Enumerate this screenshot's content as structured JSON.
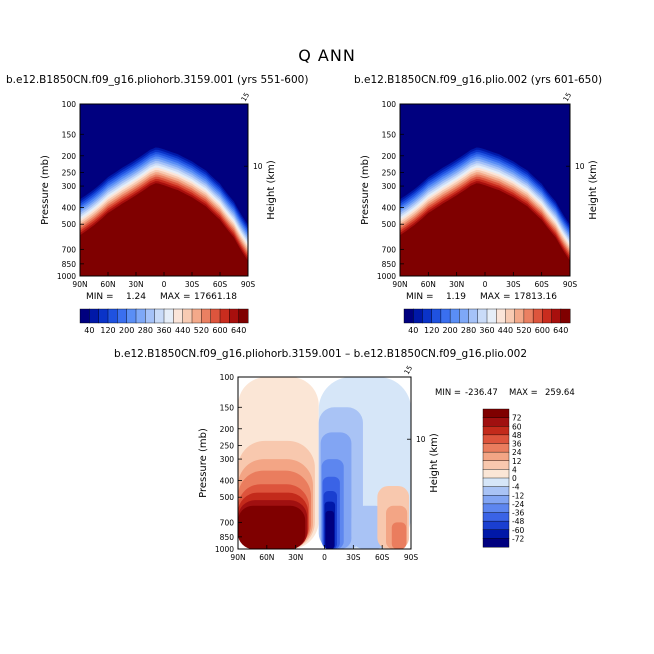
{
  "title": "Q ANN",
  "colors": {
    "moist_field": [
      "#00007f",
      "#0018a8",
      "#0a33c8",
      "#1f52e0",
      "#3a6fef",
      "#5a8ef5",
      "#7ea8f7",
      "#a5c2f8",
      "#c9dbf8",
      "#e6eef8",
      "#fbe5d9",
      "#f8cbb3",
      "#f3a98a",
      "#ea8062",
      "#dd553d",
      "#c92c1e",
      "#a80f0d",
      "#7f0000"
    ],
    "diff_field": [
      "#00007f",
      "#0018a8",
      "#1a3fd0",
      "#3a63e6",
      "#5d86ef",
      "#82a5f3",
      "#a9c3f5",
      "#d6e6f8",
      "#fbe6d6",
      "#f8c8ae",
      "#f3a585",
      "#ea7d5e",
      "#dd543c",
      "#c32a1b",
      "#a01010",
      "#7f0000"
    ]
  },
  "chart_data": [
    {
      "type": "heatmap",
      "title": "b.e12.B1850CN.f09_g16.pliohorb.3159.001 (yrs 551-600)",
      "ylabel": "Pressure (mb)",
      "ylabel_right": "Height (km)",
      "y_ticks": [
        "100",
        "150",
        "200",
        "250",
        "300",
        "400",
        "500",
        "700",
        "850",
        "1000"
      ],
      "y_tick_values": [
        100,
        150,
        200,
        250,
        300,
        400,
        500,
        700,
        850,
        1000
      ],
      "right_ticks": [
        "10"
      ],
      "right_top_tick": "15",
      "x_ticks": [
        "90N",
        "60N",
        "30N",
        "0",
        "30S",
        "60S",
        "90S"
      ],
      "x_tick_values": [
        90,
        60,
        30,
        0,
        -30,
        -60,
        -90
      ],
      "xlim": [
        90,
        -90
      ],
      "ylim": [
        100,
        1000
      ],
      "min_label": "MIN =",
      "min_value": "1.24",
      "max_label": "MAX =",
      "max_value": "17661.18",
      "colorbar_labels": [
        "40",
        "120",
        "200",
        "280",
        "360",
        "440",
        "520",
        "600",
        "640"
      ],
      "levels": [
        40,
        80,
        120,
        160,
        200,
        240,
        280,
        320,
        360,
        400,
        440,
        480,
        520,
        560,
        600,
        640,
        720
      ],
      "sat_pressure": [
        {
          "lat": 90,
          "p": 640
        },
        {
          "lat": 75,
          "p": 560
        },
        {
          "lat": 60,
          "p": 475
        },
        {
          "lat": 45,
          "p": 420
        },
        {
          "lat": 30,
          "p": 375
        },
        {
          "lat": 15,
          "p": 330
        },
        {
          "lat": 8,
          "p": 318
        },
        {
          "lat": 0,
          "p": 328
        },
        {
          "lat": -15,
          "p": 350
        },
        {
          "lat": -30,
          "p": 385
        },
        {
          "lat": -45,
          "p": 435
        },
        {
          "lat": -60,
          "p": 520
        },
        {
          "lat": -75,
          "p": 660
        },
        {
          "lat": -90,
          "p": 900
        }
      ]
    },
    {
      "type": "heatmap",
      "title": "b.e12.B1850CN.f09_g16.plio.002 (yrs 601-650)",
      "ylabel": "Pressure (mb)",
      "ylabel_right": "Height (km)",
      "y_ticks": [
        "100",
        "150",
        "200",
        "250",
        "300",
        "400",
        "500",
        "700",
        "850",
        "1000"
      ],
      "y_tick_values": [
        100,
        150,
        200,
        250,
        300,
        400,
        500,
        700,
        850,
        1000
      ],
      "right_ticks": [
        "10"
      ],
      "right_top_tick": "15",
      "x_ticks": [
        "90N",
        "60N",
        "30N",
        "0",
        "30S",
        "60S",
        "90S"
      ],
      "x_tick_values": [
        90,
        60,
        30,
        0,
        -30,
        -60,
        -90
      ],
      "xlim": [
        90,
        -90
      ],
      "ylim": [
        100,
        1000
      ],
      "min_label": "MIN =",
      "min_value": "1.19",
      "max_label": "MAX =",
      "max_value": "17813.16",
      "colorbar_labels": [
        "40",
        "120",
        "200",
        "280",
        "360",
        "440",
        "520",
        "600",
        "640"
      ],
      "levels": [
        40,
        80,
        120,
        160,
        200,
        240,
        280,
        320,
        360,
        400,
        440,
        480,
        520,
        560,
        600,
        640,
        720
      ],
      "sat_pressure": [
        {
          "lat": 90,
          "p": 640
        },
        {
          "lat": 75,
          "p": 560
        },
        {
          "lat": 60,
          "p": 475
        },
        {
          "lat": 45,
          "p": 420
        },
        {
          "lat": 30,
          "p": 375
        },
        {
          "lat": 15,
          "p": 330
        },
        {
          "lat": 8,
          "p": 318
        },
        {
          "lat": 0,
          "p": 328
        },
        {
          "lat": -15,
          "p": 350
        },
        {
          "lat": -30,
          "p": 385
        },
        {
          "lat": -45,
          "p": 435
        },
        {
          "lat": -60,
          "p": 520
        },
        {
          "lat": -75,
          "p": 660
        },
        {
          "lat": -90,
          "p": 900
        }
      ]
    },
    {
      "type": "heatmap",
      "title": "b.e12.B1850CN.f09_g16.pliohorb.3159.001 – b.e12.B1850CN.f09_g16.plio.002",
      "ylabel": "Pressure (mb)",
      "ylabel_right": "Height (km)",
      "y_ticks": [
        "100",
        "150",
        "200",
        "250",
        "300",
        "400",
        "500",
        "700",
        "850",
        "1000"
      ],
      "y_tick_values": [
        100,
        150,
        200,
        250,
        300,
        400,
        500,
        700,
        850,
        1000
      ],
      "right_ticks": [
        "10"
      ],
      "right_top_tick": "15",
      "x_ticks": [
        "90N",
        "60N",
        "30N",
        "0",
        "30S",
        "60S",
        "90S"
      ],
      "x_tick_values": [
        90,
        60,
        30,
        0,
        -30,
        -60,
        -90
      ],
      "xlim": [
        90,
        -90
      ],
      "ylim": [
        100,
        1000
      ],
      "min_label": "MIN =",
      "min_value": "-236.47",
      "max_label": "MAX =",
      "max_value": "259.64",
      "colorbar_labels": [
        "72",
        "60",
        "48",
        "36",
        "24",
        "12",
        "4",
        "0",
        "-4",
        "-12",
        "-24",
        "-36",
        "-48",
        "-60",
        "-72"
      ],
      "levels": [
        -84,
        -72,
        -60,
        -48,
        -36,
        -24,
        -12,
        -4,
        0,
        4,
        12,
        24,
        36,
        48,
        60,
        72,
        84
      ],
      "regions": [
        {
          "name": "background-nh",
          "lat0": 90,
          "lat1": 6,
          "p0": 100,
          "p1": 1000,
          "value": 2
        },
        {
          "name": "background-sh",
          "lat0": 6,
          "lat1": -90,
          "p0": 100,
          "p1": 1000,
          "value": -2
        },
        {
          "name": "nh-warm-1",
          "lat0": 90,
          "lat1": 10,
          "p0": 235,
          "p1": 1000,
          "value": 8
        },
        {
          "name": "nh-warm-2",
          "lat0": 90,
          "lat1": 12,
          "p0": 300,
          "p1": 1000,
          "value": 18
        },
        {
          "name": "nh-warm-3",
          "lat0": 90,
          "lat1": 14,
          "p0": 350,
          "p1": 1000,
          "value": 30
        },
        {
          "name": "nh-warm-4",
          "lat0": 90,
          "lat1": 16,
          "p0": 420,
          "p1": 1000,
          "value": 42
        },
        {
          "name": "nh-warm-5",
          "lat0": 90,
          "lat1": 17,
          "p0": 470,
          "p1": 1000,
          "value": 54
        },
        {
          "name": "nh-warm-6",
          "lat0": 90,
          "lat1": 18,
          "p0": 520,
          "p1": 1000,
          "value": 66
        },
        {
          "name": "nh-warm-7",
          "lat0": 90,
          "lat1": 20,
          "p0": 560,
          "p1": 1000,
          "value": 80
        },
        {
          "name": "eq-cool-1",
          "lat0": 6,
          "lat1": -40,
          "p0": 150,
          "p1": 1000,
          "value": -8
        },
        {
          "name": "eq-cool-2",
          "lat0": 4,
          "lat1": -28,
          "p0": 210,
          "p1": 1000,
          "value": -18
        },
        {
          "name": "eq-cool-3",
          "lat0": 3,
          "lat1": -20,
          "p0": 300,
          "p1": 1000,
          "value": -30
        },
        {
          "name": "eq-cool-4",
          "lat0": 2,
          "lat1": -16,
          "p0": 380,
          "p1": 1000,
          "value": -42
        },
        {
          "name": "eq-cool-5",
          "lat0": 1,
          "lat1": -13,
          "p0": 460,
          "p1": 1000,
          "value": -54
        },
        {
          "name": "eq-cool-6",
          "lat0": 0,
          "lat1": -11,
          "p0": 530,
          "p1": 1000,
          "value": -66
        },
        {
          "name": "eq-cool-7",
          "lat0": -1,
          "lat1": -10,
          "p0": 600,
          "p1": 1000,
          "value": -80
        },
        {
          "name": "sh-cool-1",
          "lat0": -28,
          "lat1": -66,
          "p0": 560,
          "p1": 1000,
          "value": -8
        },
        {
          "name": "sh-warm-1",
          "lat0": -55,
          "lat1": -88,
          "p0": 430,
          "p1": 1000,
          "value": 8
        },
        {
          "name": "sh-warm-2",
          "lat0": -64,
          "lat1": -86,
          "p0": 560,
          "p1": 1000,
          "value": 18
        },
        {
          "name": "sh-warm-3",
          "lat0": -70,
          "lat1": -85,
          "p0": 700,
          "p1": 1000,
          "value": 30
        }
      ]
    }
  ]
}
